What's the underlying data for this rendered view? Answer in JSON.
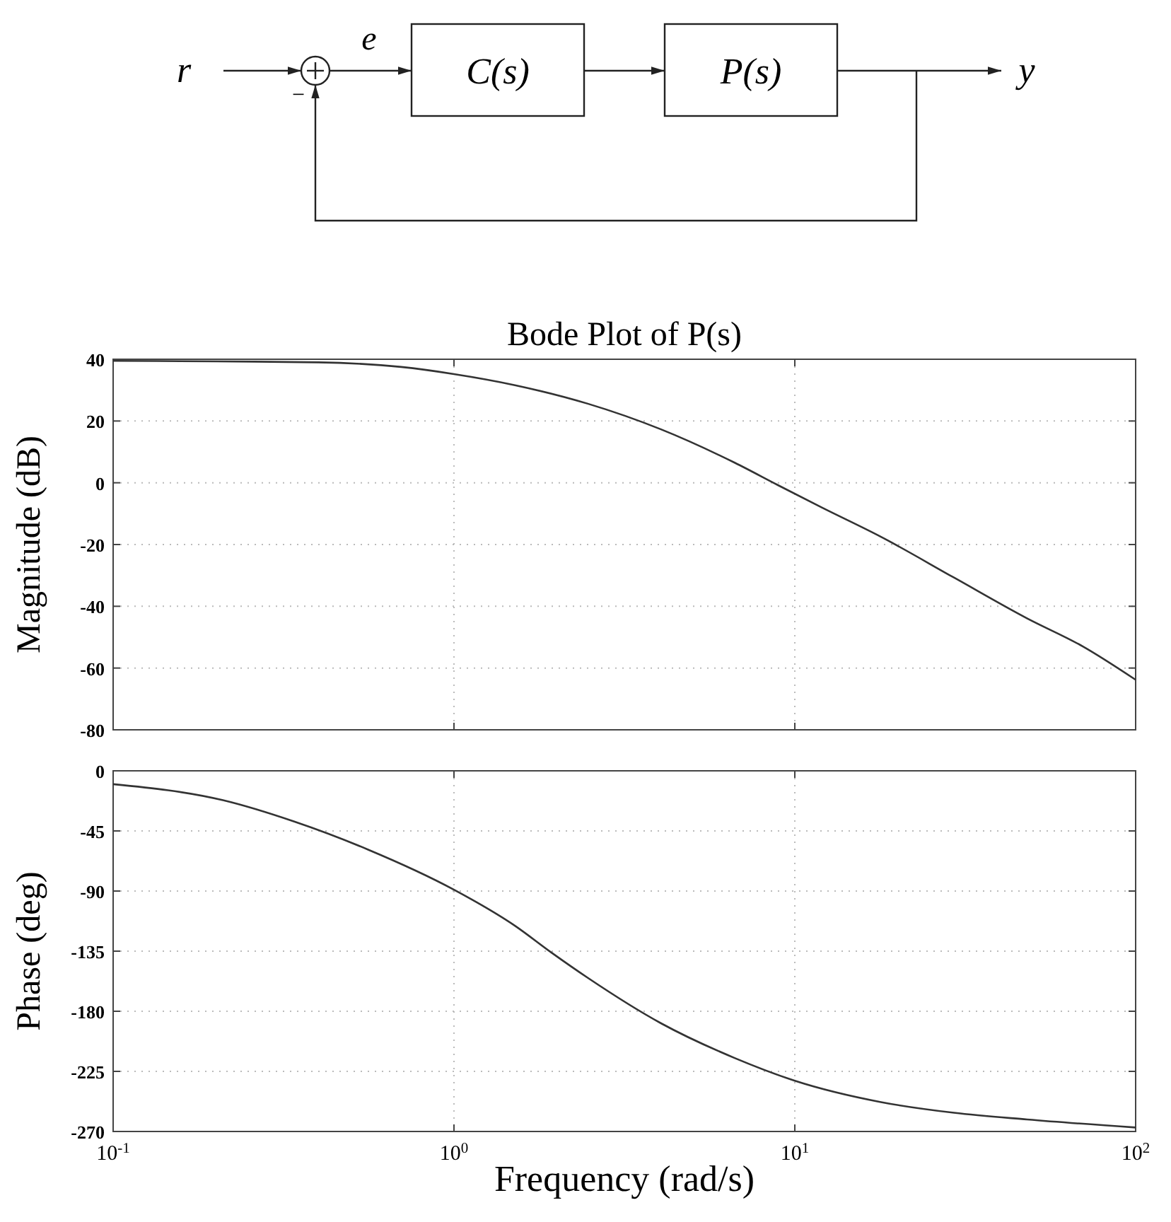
{
  "chart_data": [
    {
      "type": "other",
      "annotations": [
        "r",
        "e",
        "C(s)",
        "P(s)",
        "y",
        "−"
      ]
    },
    {
      "type": "line",
      "title": "Bode Plot of P(s)",
      "ylabel": "Magnitude (dB)",
      "xlim": [
        0.1,
        100
      ],
      "xticks": [
        {
          "value": 0.1,
          "label": null
        },
        {
          "value": 1,
          "label": null
        },
        {
          "value": 10,
          "label": null
        },
        {
          "value": 100,
          "label": null
        }
      ],
      "ylim": [
        -80,
        40
      ],
      "yticks": [
        -80,
        -60,
        -40,
        -20,
        0,
        20,
        40
      ],
      "log": "x",
      "grid": true,
      "tick_labels": "y",
      "series": [
        {
          "color": "#333333",
          "x": [
            0.1,
            0.2,
            0.4,
            0.7,
            1,
            1.51,
            2.47,
            4.05,
            6.66,
            8.9,
            12,
            17.9,
            29.3,
            48,
            70,
            100
          ],
          "values": [
            39.5,
            39.3,
            39,
            37.5,
            35.2,
            31.6,
            25.6,
            17.3,
            6.5,
            -0.7,
            -8,
            -17.5,
            -30.7,
            -43.9,
            -53,
            -63.8
          ]
        }
      ]
    },
    {
      "type": "line",
      "xlabel": "Frequency (rad/s)",
      "ylabel": "Phase (deg)",
      "xlim": [
        0.1,
        100
      ],
      "xticks": [
        {
          "value": 0.1,
          "label": "10$^{-1}$"
        },
        {
          "value": 1,
          "label": "10$^{0}$"
        },
        {
          "value": 10,
          "label": "10$^{1}$"
        },
        {
          "value": 100,
          "label": "10$^{2}$"
        }
      ],
      "ylim": [
        -270,
        0
      ],
      "yticks": [
        -270,
        -225,
        -180,
        -135,
        -90,
        -45,
        0
      ],
      "log": "x",
      "grid": true,
      "series": [
        {
          "color": "#333333",
          "x": [
            0.1,
            0.21,
            0.34,
            0.56,
            1,
            1.51,
            1.93,
            2.47,
            4.05,
            6.66,
            10,
            17.9,
            29.3,
            48,
            100
          ],
          "values": [
            -10,
            -22,
            -38,
            -59,
            -89,
            -116,
            -136,
            -155,
            -189,
            -215,
            -232,
            -248,
            -256,
            -261,
            -267
          ]
        }
      ]
    }
  ]
}
